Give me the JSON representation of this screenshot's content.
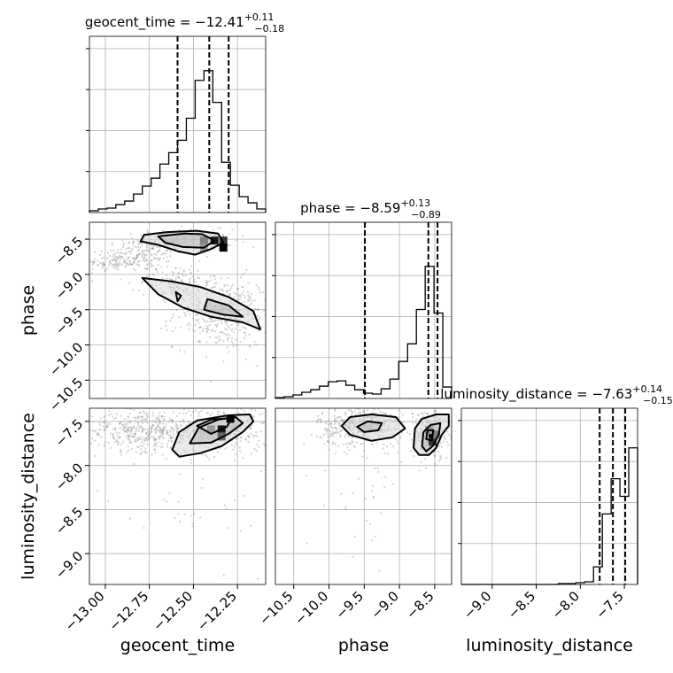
{
  "chart_data": {
    "type": "corner",
    "grid": true,
    "colors": {
      "hist": "#000000",
      "quantile": "#000000",
      "contour": "#000000",
      "samples": "#808080",
      "grid": "#b0b0b0"
    },
    "params": [
      {
        "name": "geocent_time",
        "xlabel": "geocent_time",
        "ylabel": "",
        "title_prefix": "geocent_time = ",
        "median": "−12.41",
        "upper": "+0.11",
        "lower": "−0.18",
        "range": [
          -13.09,
          -12.09
        ],
        "ticks": [
          -13.0,
          -12.75,
          -12.5,
          -12.25
        ],
        "tick_labels": [
          "−13.00",
          "−12.75",
          "−12.50",
          "−12.25"
        ],
        "quantiles": [
          -12.59,
          -12.41,
          -12.3
        ],
        "hist": {
          "counts": [
            2,
            4,
            5,
            9,
            13,
            21,
            30,
            39,
            55,
            68,
            82,
            107,
            150,
            161,
            125,
            57,
            31,
            18,
            11,
            4
          ],
          "ymax": 200
        }
      },
      {
        "name": "phase",
        "xlabel": "phase",
        "ylabel": "phase",
        "title_prefix": "phase = ",
        "median": "−8.59",
        "upper": "+0.13",
        "lower": "−0.89",
        "range": [
          -10.76,
          -8.26
        ],
        "ticks": [
          -10.5,
          -10.0,
          -9.5,
          -9.0,
          -8.5
        ],
        "tick_labels": [
          "−10.5",
          "−10.0",
          "−9.5",
          "−9.0",
          "−8.5"
        ],
        "quantiles": [
          -9.49,
          -8.59,
          -8.46
        ],
        "hist": {
          "counts": [
            1,
            2,
            4,
            7,
            10,
            14,
            19,
            20,
            15,
            10,
            6,
            5,
            11,
            22,
            42,
            62,
            101,
            150,
            97,
            13
          ],
          "ymax": 200
        }
      },
      {
        "name": "luminosity_distance",
        "xlabel": "luminosity_distance",
        "ylabel": "luminosity_distance",
        "title_prefix": "luminosity_distance = ",
        "median": "−7.63",
        "upper": "+0.14",
        "lower": "−0.15",
        "range": [
          -9.35,
          -7.35
        ],
        "ticks": [
          -9.0,
          -8.5,
          -8.0,
          -7.5
        ],
        "tick_labels": [
          "−9.0",
          "−8.5",
          "−8.0",
          "−7.5"
        ],
        "quantiles": [
          -7.78,
          -7.63,
          -7.49
        ],
        "hist": {
          "counts": [
            0,
            0,
            0,
            0,
            0,
            0,
            0,
            0,
            0,
            0,
            0,
            1,
            1,
            2,
            3,
            20,
            80,
            120,
            100,
            155
          ],
          "ymax": 200
        }
      }
    ],
    "pairs": [
      {
        "x": "geocent_time",
        "y": "phase",
        "contours": [
          [
            [
              -12.78,
              -8.44
            ],
            [
              -12.65,
              -8.4
            ],
            [
              -12.48,
              -8.38
            ],
            [
              -12.36,
              -8.42
            ],
            [
              -12.33,
              -8.55
            ],
            [
              -12.4,
              -8.64
            ],
            [
              -12.49,
              -8.72
            ],
            [
              -12.59,
              -8.67
            ],
            [
              -12.7,
              -8.58
            ],
            [
              -12.8,
              -8.53
            ]
          ],
          [
            [
              -12.7,
              -8.46
            ],
            [
              -12.55,
              -8.42
            ],
            [
              -12.45,
              -8.43
            ],
            [
              -12.38,
              -8.52
            ],
            [
              -12.44,
              -8.62
            ],
            [
              -12.56,
              -8.61
            ],
            [
              -12.66,
              -8.55
            ]
          ],
          [
            [
              -12.79,
              -9.05
            ],
            [
              -12.62,
              -9.1
            ],
            [
              -12.46,
              -9.18
            ],
            [
              -12.3,
              -9.32
            ],
            [
              -12.16,
              -9.52
            ],
            [
              -12.12,
              -9.78
            ],
            [
              -12.22,
              -9.68
            ],
            [
              -12.4,
              -9.6
            ],
            [
              -12.56,
              -9.47
            ],
            [
              -12.7,
              -9.28
            ]
          ],
          [
            [
              -12.42,
              -9.35
            ],
            [
              -12.3,
              -9.44
            ],
            [
              -12.22,
              -9.6
            ],
            [
              -12.33,
              -9.57
            ],
            [
              -12.44,
              -9.5
            ]
          ],
          [
            [
              -12.6,
              -9.25
            ],
            [
              -12.59,
              -9.38
            ],
            [
              -12.57,
              -9.3
            ]
          ]
        ],
        "density_cells": [
          {
            "x": -12.38,
            "y": -8.52,
            "level": 0.9
          },
          {
            "x": -12.33,
            "y": -8.52,
            "level": 0.8
          },
          {
            "x": -12.33,
            "y": -8.62,
            "level": 1.0
          },
          {
            "x": -12.44,
            "y": -8.52,
            "level": 0.5
          },
          {
            "x": -12.44,
            "y": -8.62,
            "level": 0.4
          }
        ],
        "samples": [
          {
            "x": -12.8,
            "y": -8.72,
            "spread": [
              0.12,
              0.12
            ],
            "n": 160
          },
          {
            "x": -12.95,
            "y": -8.84,
            "spread": [
              0.08,
              0.06
            ],
            "n": 80
          },
          {
            "x": -12.55,
            "y": -8.52,
            "spread": [
              0.14,
              0.08
            ],
            "n": 200
          },
          {
            "x": -12.33,
            "y": -9.55,
            "spread": [
              0.14,
              0.25
            ],
            "n": 420
          },
          {
            "x": -12.6,
            "y": -9.1,
            "spread": [
              0.1,
              0.12
            ],
            "n": 120
          }
        ]
      },
      {
        "x": "geocent_time",
        "y": "luminosity_distance",
        "contours": [
          [
            [
              -12.62,
              -7.82
            ],
            [
              -12.58,
              -7.62
            ],
            [
              -12.48,
              -7.49
            ],
            [
              -12.3,
              -7.43
            ],
            [
              -12.18,
              -7.42
            ],
            [
              -12.16,
              -7.5
            ],
            [
              -12.22,
              -7.62
            ],
            [
              -12.34,
              -7.78
            ],
            [
              -12.46,
              -7.86
            ],
            [
              -12.58,
              -7.9
            ]
          ],
          [
            [
              -12.52,
              -7.75
            ],
            [
              -12.47,
              -7.57
            ],
            [
              -12.36,
              -7.48
            ],
            [
              -12.26,
              -7.45
            ],
            [
              -12.22,
              -7.52
            ],
            [
              -12.3,
              -7.64
            ],
            [
              -12.4,
              -7.74
            ]
          ],
          [
            [
              -12.48,
              -7.55
            ],
            [
              -12.4,
              -7.48
            ],
            [
              -12.28,
              -7.46
            ],
            [
              -12.31,
              -7.56
            ],
            [
              -12.4,
              -7.64
            ]
          ]
        ],
        "density_cells": [
          {
            "x": -12.29,
            "y": -7.47,
            "level": 1.0
          },
          {
            "x": -12.34,
            "y": -7.59,
            "level": 0.9
          },
          {
            "x": -12.34,
            "y": -7.67,
            "level": 0.6
          },
          {
            "x": -12.4,
            "y": -7.59,
            "level": 0.4
          }
        ],
        "samples": [
          {
            "x": -12.78,
            "y": -7.6,
            "spread": [
              0.16,
              0.12
            ],
            "n": 420
          },
          {
            "x": -12.35,
            "y": -7.6,
            "spread": [
              0.14,
              0.14
            ],
            "n": 320
          },
          {
            "x": -12.5,
            "y": -8.3,
            "spread": [
              0.25,
              0.4
            ],
            "n": 40
          }
        ]
      },
      {
        "x": "phase",
        "y": "luminosity_distance",
        "contours": [
          [
            [
              -9.82,
              -7.55
            ],
            [
              -9.7,
              -7.45
            ],
            [
              -9.4,
              -7.42
            ],
            [
              -9.05,
              -7.45
            ],
            [
              -8.92,
              -7.58
            ],
            [
              -9.1,
              -7.68
            ],
            [
              -9.4,
              -7.72
            ],
            [
              -9.7,
              -7.65
            ]
          ],
          [
            [
              -9.6,
              -7.56
            ],
            [
              -9.45,
              -7.5
            ],
            [
              -9.25,
              -7.52
            ],
            [
              -9.3,
              -7.6
            ],
            [
              -9.5,
              -7.62
            ]
          ],
          [
            [
              -8.8,
              -7.8
            ],
            [
              -8.78,
              -7.58
            ],
            [
              -8.68,
              -7.47
            ],
            [
              -8.48,
              -7.42
            ],
            [
              -8.3,
              -7.42
            ],
            [
              -8.3,
              -7.55
            ],
            [
              -8.4,
              -7.65
            ],
            [
              -8.48,
              -7.8
            ],
            [
              -8.58,
              -7.88
            ],
            [
              -8.72,
              -7.88
            ]
          ],
          [
            [
              -8.68,
              -7.78
            ],
            [
              -8.66,
              -7.62
            ],
            [
              -8.56,
              -7.54
            ],
            [
              -8.42,
              -7.52
            ],
            [
              -8.44,
              -7.64
            ],
            [
              -8.53,
              -7.78
            ],
            [
              -8.62,
              -7.84
            ]
          ],
          [
            [
              -8.62,
              -7.7
            ],
            [
              -8.6,
              -7.6
            ],
            [
              -8.52,
              -7.6
            ],
            [
              -8.54,
              -7.72
            ]
          ]
        ],
        "density_cells": [
          {
            "x": -8.53,
            "y": -7.65,
            "level": 1.0
          },
          {
            "x": -8.53,
            "y": -7.73,
            "level": 0.8
          },
          {
            "x": -8.48,
            "y": -7.65,
            "level": 0.5
          },
          {
            "x": -8.58,
            "y": -7.6,
            "level": 0.4
          }
        ],
        "samples": [
          {
            "x": -9.55,
            "y": -7.55,
            "spread": [
              0.3,
              0.12
            ],
            "n": 420
          },
          {
            "x": -8.55,
            "y": -7.65,
            "spread": [
              0.12,
              0.15
            ],
            "n": 260
          },
          {
            "x": -9.4,
            "y": -8.2,
            "spread": [
              0.3,
              0.4
            ],
            "n": 40
          }
        ]
      }
    ]
  }
}
